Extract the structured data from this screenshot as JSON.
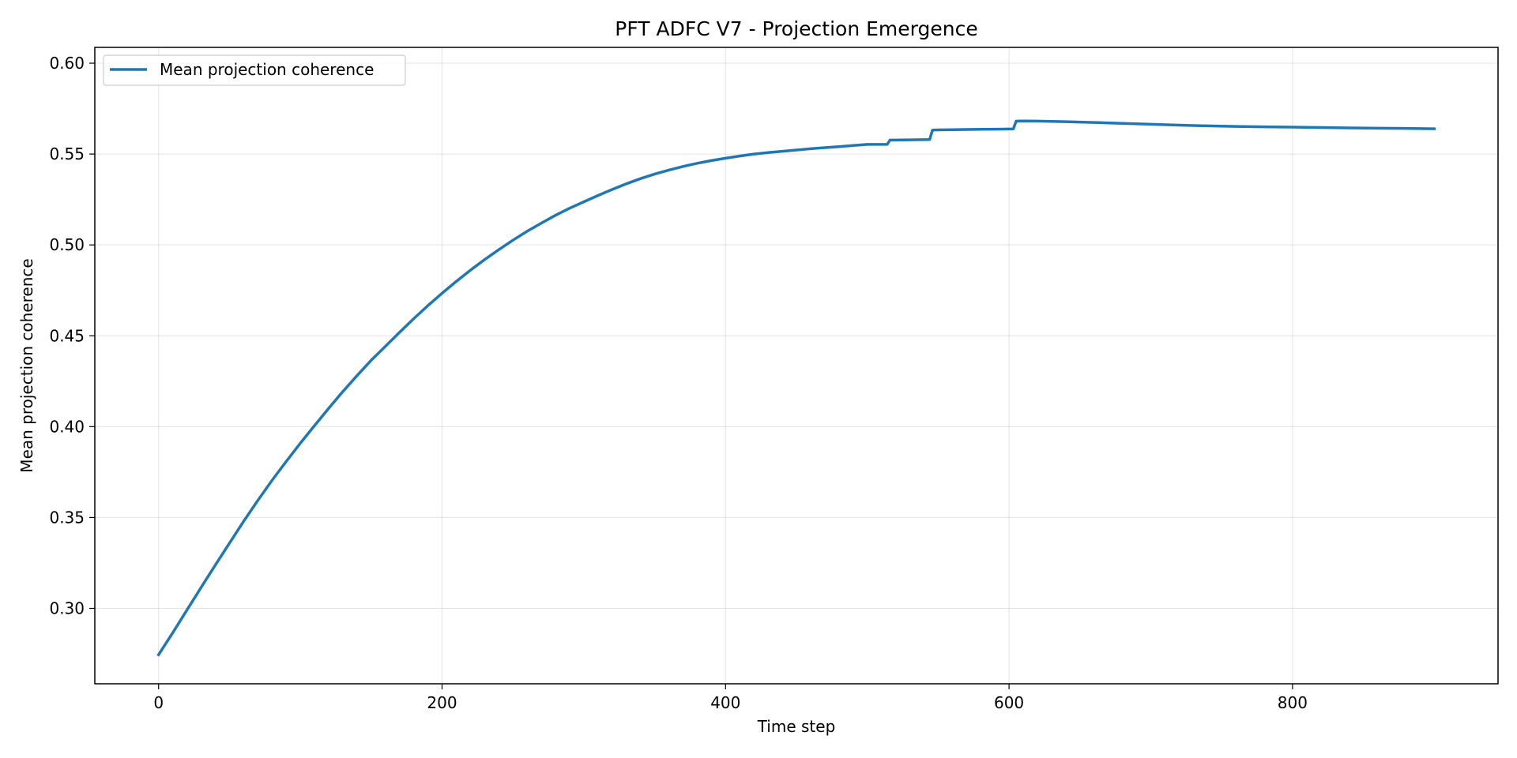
{
  "chart_data": {
    "type": "line",
    "title": "PFT ADFC V7 - Projection Emergence",
    "xlabel": "Time step",
    "ylabel": "Mean projection coherence",
    "xlim": [
      -45,
      945
    ],
    "ylim": [
      0.2585,
      0.6087
    ],
    "xticks": [
      0,
      200,
      400,
      600,
      800
    ],
    "yticks": [
      0.3,
      0.35,
      0.4,
      0.45,
      0.5,
      0.55,
      0.6
    ],
    "grid": true,
    "legend_position": "top-left",
    "series": [
      {
        "name": "Mean projection coherence",
        "color": "#1f77b4",
        "x": [
          0,
          10,
          20,
          30,
          40,
          50,
          60,
          70,
          80,
          90,
          100,
          110,
          120,
          130,
          140,
          150,
          160,
          170,
          180,
          190,
          200,
          210,
          220,
          230,
          240,
          250,
          260,
          270,
          280,
          290,
          300,
          310,
          320,
          330,
          340,
          350,
          360,
          370,
          380,
          390,
          400,
          410,
          420,
          430,
          440,
          450,
          460,
          470,
          480,
          490,
          500,
          514,
          516,
          520,
          530,
          544,
          546,
          550,
          560,
          570,
          580,
          590,
          603,
          605,
          610,
          620,
          640,
          660,
          680,
          700,
          720,
          740,
          760,
          780,
          800,
          820,
          840,
          860,
          880,
          900
        ],
        "y": [
          0.2745,
          0.2866,
          0.2991,
          0.3115,
          0.3238,
          0.3359,
          0.3479,
          0.3594,
          0.3704,
          0.3808,
          0.3909,
          0.4006,
          0.4101,
          0.4193,
          0.4281,
          0.4365,
          0.4442,
          0.4519,
          0.4594,
          0.4666,
          0.4734,
          0.4799,
          0.4861,
          0.4919,
          0.4974,
          0.5026,
          0.5075,
          0.512,
          0.5163,
          0.5202,
          0.5237,
          0.5272,
          0.5305,
          0.5336,
          0.5365,
          0.539,
          0.5412,
          0.5432,
          0.5449,
          0.5464,
          0.5477,
          0.5489,
          0.55,
          0.5508,
          0.5515,
          0.5522,
          0.5529,
          0.5535,
          0.5541,
          0.5547,
          0.5553,
          0.5553,
          0.5577,
          0.5577,
          0.5578,
          0.558,
          0.5632,
          0.5633,
          0.5634,
          0.5635,
          0.5636,
          0.5637,
          0.5638,
          0.5681,
          0.5682,
          0.5681,
          0.5678,
          0.5674,
          0.5669,
          0.5664,
          0.5659,
          0.5655,
          0.5652,
          0.565,
          0.5648,
          0.5646,
          0.5644,
          0.5642,
          0.5641,
          0.5639
        ]
      }
    ]
  }
}
